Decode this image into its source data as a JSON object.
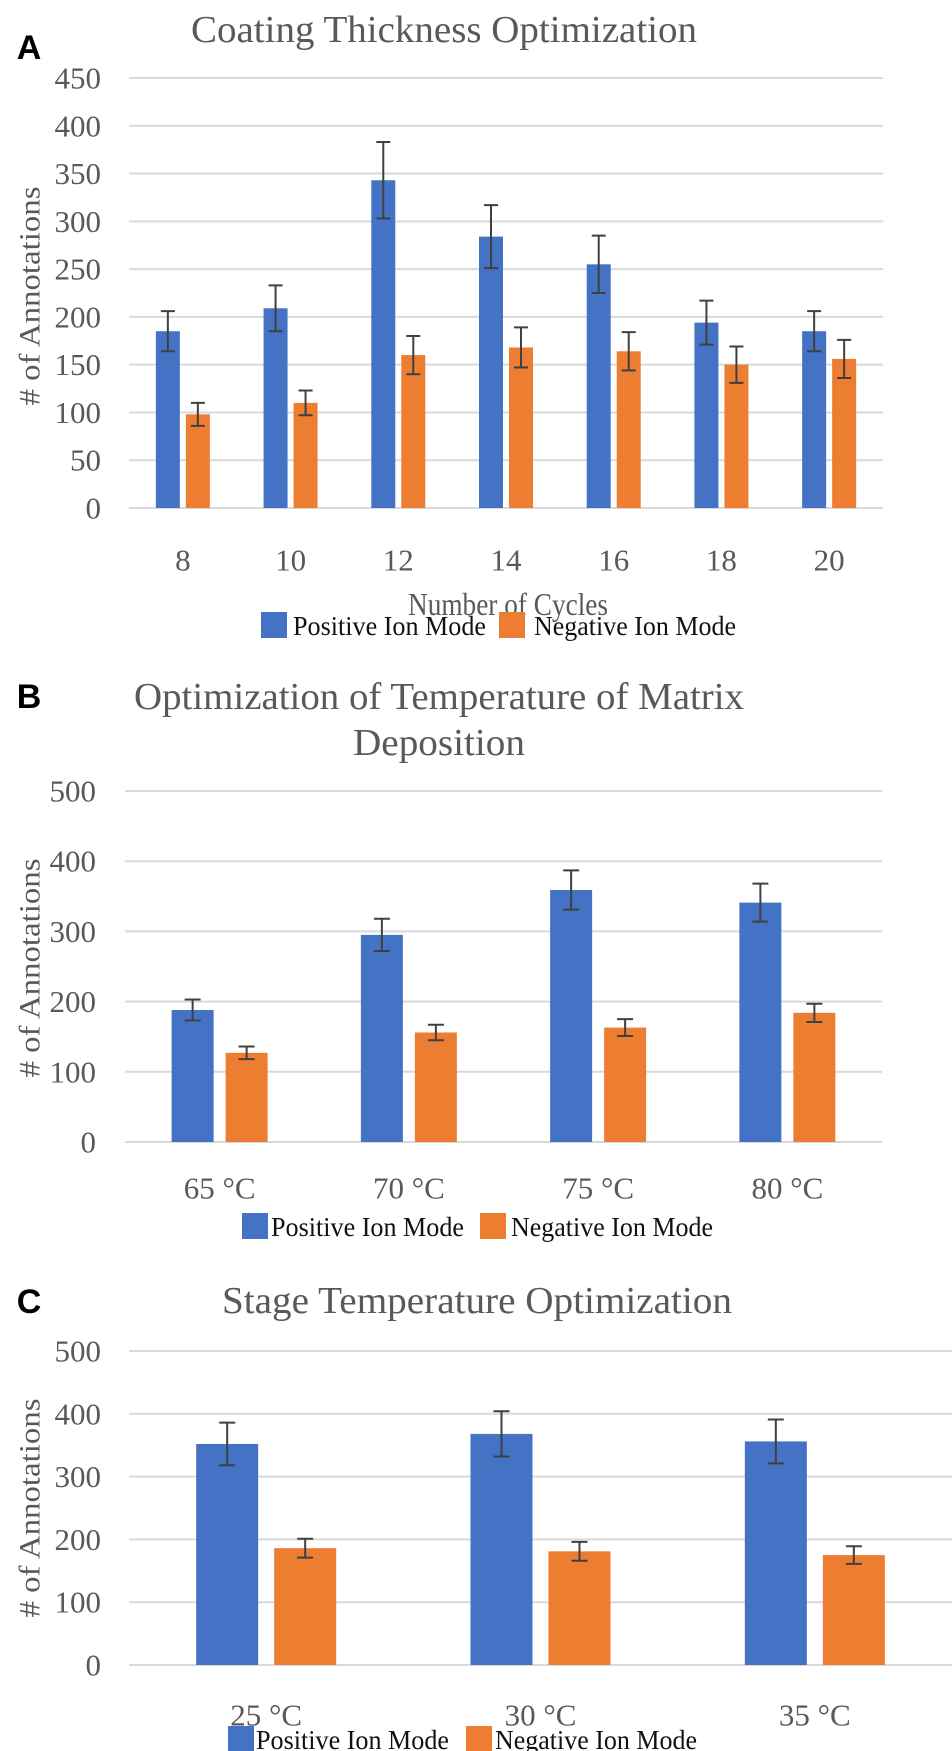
{
  "colors": {
    "positive": "#4472C4",
    "negative": "#ED7D31",
    "grid": "#D9D9D9",
    "error_bar": "#404040",
    "text": "#595959"
  },
  "chart_data": [
    {
      "panel": "A",
      "type": "bar",
      "title": "Coating Thickness Optimization",
      "xlabel": "Number of Cycles",
      "ylabel": "# of Annotations",
      "ylim": [
        0,
        450
      ],
      "yticks": [
        "0",
        "50",
        "100",
        "150",
        "200",
        "250",
        "300",
        "350",
        "400",
        "450"
      ],
      "grid": true,
      "legend": "bottom",
      "categories": [
        "8",
        "10",
        "12",
        "14",
        "16",
        "18",
        "20"
      ],
      "series": [
        {
          "name": "Positive Ion Mode",
          "values": [
            185,
            209,
            343,
            284,
            255,
            194,
            185
          ],
          "errors": [
            21,
            24,
            40,
            33,
            30,
            23,
            21
          ]
        },
        {
          "name": "Negative Ion Mode",
          "values": [
            98,
            110,
            160,
            168,
            164,
            150,
            156
          ],
          "errors": [
            12,
            13,
            20,
            21,
            20,
            19,
            20
          ]
        }
      ]
    },
    {
      "panel": "B",
      "type": "bar",
      "title": "Optimization of Temperature of Matrix",
      "title_line2": "Deposition",
      "xlabel": "",
      "ylabel": "# of Annotations",
      "ylim": [
        0,
        500
      ],
      "yticks": [
        "0",
        "100",
        "200",
        "300",
        "400",
        "500"
      ],
      "grid": true,
      "legend": "bottom",
      "categories": [
        "65 °C",
        "70 °C",
        "75 °C",
        "80 °C"
      ],
      "series": [
        {
          "name": "Positive Ion Mode",
          "values": [
            188,
            295,
            359,
            341
          ],
          "errors": [
            15,
            23,
            28,
            27
          ]
        },
        {
          "name": "Negative Ion Mode",
          "values": [
            127,
            156,
            163,
            184
          ],
          "errors": [
            9,
            11,
            12,
            13
          ]
        }
      ]
    },
    {
      "panel": "C",
      "type": "bar",
      "title": "Stage Temperature Optimization",
      "xlabel": "",
      "ylabel": "# of Annotations",
      "ylim": [
        0,
        500
      ],
      "yticks": [
        "0",
        "100",
        "200",
        "300",
        "400",
        "500"
      ],
      "grid": true,
      "legend": "bottom",
      "categories": [
        "25 °C",
        "30 °C",
        "35 °C"
      ],
      "series": [
        {
          "name": "Positive Ion Mode",
          "values": [
            352,
            368,
            356
          ],
          "errors": [
            34,
            36,
            35
          ]
        },
        {
          "name": "Negative Ion Mode",
          "values": [
            186,
            181,
            175
          ],
          "errors": [
            15,
            15,
            14
          ]
        }
      ]
    }
  ]
}
